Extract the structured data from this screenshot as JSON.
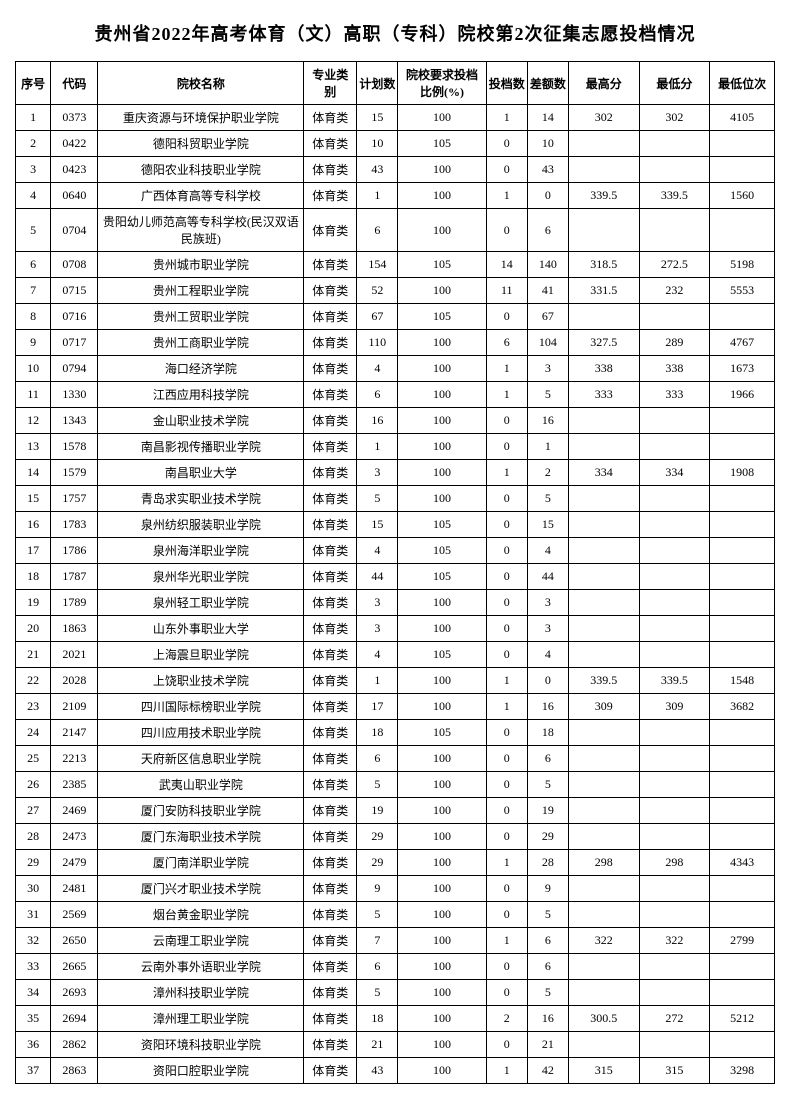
{
  "title": "贵州省2022年高考体育（文）高职（专科）院校第2次征集志愿投档情况",
  "columns": [
    "序号",
    "代码",
    "院校名称",
    "专业类别",
    "计划数",
    "院校要求投档比例(%)",
    "投档数",
    "差额数",
    "最高分",
    "最低分",
    "最低位次"
  ],
  "rows": [
    [
      "1",
      "0373",
      "重庆资源与环境保护职业学院",
      "体育类",
      "15",
      "100",
      "1",
      "14",
      "302",
      "302",
      "4105"
    ],
    [
      "2",
      "0422",
      "德阳科贸职业学院",
      "体育类",
      "10",
      "105",
      "0",
      "10",
      "",
      "",
      ""
    ],
    [
      "3",
      "0423",
      "德阳农业科技职业学院",
      "体育类",
      "43",
      "100",
      "0",
      "43",
      "",
      "",
      ""
    ],
    [
      "4",
      "0640",
      "广西体育高等专科学校",
      "体育类",
      "1",
      "100",
      "1",
      "0",
      "339.5",
      "339.5",
      "1560"
    ],
    [
      "5",
      "0704",
      "贵阳幼儿师范高等专科学校(民汉双语民族班)",
      "体育类",
      "6",
      "100",
      "0",
      "6",
      "",
      "",
      ""
    ],
    [
      "6",
      "0708",
      "贵州城市职业学院",
      "体育类",
      "154",
      "105",
      "14",
      "140",
      "318.5",
      "272.5",
      "5198"
    ],
    [
      "7",
      "0715",
      "贵州工程职业学院",
      "体育类",
      "52",
      "100",
      "11",
      "41",
      "331.5",
      "232",
      "5553"
    ],
    [
      "8",
      "0716",
      "贵州工贸职业学院",
      "体育类",
      "67",
      "105",
      "0",
      "67",
      "",
      "",
      ""
    ],
    [
      "9",
      "0717",
      "贵州工商职业学院",
      "体育类",
      "110",
      "100",
      "6",
      "104",
      "327.5",
      "289",
      "4767"
    ],
    [
      "10",
      "0794",
      "海口经济学院",
      "体育类",
      "4",
      "100",
      "1",
      "3",
      "338",
      "338",
      "1673"
    ],
    [
      "11",
      "1330",
      "江西应用科技学院",
      "体育类",
      "6",
      "100",
      "1",
      "5",
      "333",
      "333",
      "1966"
    ],
    [
      "12",
      "1343",
      "金山职业技术学院",
      "体育类",
      "16",
      "100",
      "0",
      "16",
      "",
      "",
      ""
    ],
    [
      "13",
      "1578",
      "南昌影视传播职业学院",
      "体育类",
      "1",
      "100",
      "0",
      "1",
      "",
      "",
      ""
    ],
    [
      "14",
      "1579",
      "南昌职业大学",
      "体育类",
      "3",
      "100",
      "1",
      "2",
      "334",
      "334",
      "1908"
    ],
    [
      "15",
      "1757",
      "青岛求实职业技术学院",
      "体育类",
      "5",
      "100",
      "0",
      "5",
      "",
      "",
      ""
    ],
    [
      "16",
      "1783",
      "泉州纺织服装职业学院",
      "体育类",
      "15",
      "105",
      "0",
      "15",
      "",
      "",
      ""
    ],
    [
      "17",
      "1786",
      "泉州海洋职业学院",
      "体育类",
      "4",
      "105",
      "0",
      "4",
      "",
      "",
      ""
    ],
    [
      "18",
      "1787",
      "泉州华光职业学院",
      "体育类",
      "44",
      "105",
      "0",
      "44",
      "",
      "",
      ""
    ],
    [
      "19",
      "1789",
      "泉州轻工职业学院",
      "体育类",
      "3",
      "100",
      "0",
      "3",
      "",
      "",
      ""
    ],
    [
      "20",
      "1863",
      "山东外事职业大学",
      "体育类",
      "3",
      "100",
      "0",
      "3",
      "",
      "",
      ""
    ],
    [
      "21",
      "2021",
      "上海震旦职业学院",
      "体育类",
      "4",
      "105",
      "0",
      "4",
      "",
      "",
      ""
    ],
    [
      "22",
      "2028",
      "上饶职业技术学院",
      "体育类",
      "1",
      "100",
      "1",
      "0",
      "339.5",
      "339.5",
      "1548"
    ],
    [
      "23",
      "2109",
      "四川国际标榜职业学院",
      "体育类",
      "17",
      "100",
      "1",
      "16",
      "309",
      "309",
      "3682"
    ],
    [
      "24",
      "2147",
      "四川应用技术职业学院",
      "体育类",
      "18",
      "105",
      "0",
      "18",
      "",
      "",
      ""
    ],
    [
      "25",
      "2213",
      "天府新区信息职业学院",
      "体育类",
      "6",
      "100",
      "0",
      "6",
      "",
      "",
      ""
    ],
    [
      "26",
      "2385",
      "武夷山职业学院",
      "体育类",
      "5",
      "100",
      "0",
      "5",
      "",
      "",
      ""
    ],
    [
      "27",
      "2469",
      "厦门安防科技职业学院",
      "体育类",
      "19",
      "100",
      "0",
      "19",
      "",
      "",
      ""
    ],
    [
      "28",
      "2473",
      "厦门东海职业技术学院",
      "体育类",
      "29",
      "100",
      "0",
      "29",
      "",
      "",
      ""
    ],
    [
      "29",
      "2479",
      "厦门南洋职业学院",
      "体育类",
      "29",
      "100",
      "1",
      "28",
      "298",
      "298",
      "4343"
    ],
    [
      "30",
      "2481",
      "厦门兴才职业技术学院",
      "体育类",
      "9",
      "100",
      "0",
      "9",
      "",
      "",
      ""
    ],
    [
      "31",
      "2569",
      "烟台黄金职业学院",
      "体育类",
      "5",
      "100",
      "0",
      "5",
      "",
      "",
      ""
    ],
    [
      "32",
      "2650",
      "云南理工职业学院",
      "体育类",
      "7",
      "100",
      "1",
      "6",
      "322",
      "322",
      "2799"
    ],
    [
      "33",
      "2665",
      "云南外事外语职业学院",
      "体育类",
      "6",
      "100",
      "0",
      "6",
      "",
      "",
      ""
    ],
    [
      "34",
      "2693",
      "漳州科技职业学院",
      "体育类",
      "5",
      "100",
      "0",
      "5",
      "",
      "",
      ""
    ],
    [
      "35",
      "2694",
      "漳州理工职业学院",
      "体育类",
      "18",
      "100",
      "2",
      "16",
      "300.5",
      "272",
      "5212"
    ],
    [
      "36",
      "2862",
      "资阳环境科技职业学院",
      "体育类",
      "21",
      "100",
      "0",
      "21",
      "",
      "",
      ""
    ],
    [
      "37",
      "2863",
      "资阳口腔职业学院",
      "体育类",
      "43",
      "100",
      "1",
      "42",
      "315",
      "315",
      "3298"
    ]
  ],
  "column_classes": [
    "col-seq",
    "col-code",
    "col-name",
    "col-type",
    "col-plan",
    "col-ratio",
    "col-filed",
    "col-diff",
    "col-max",
    "col-min",
    "col-rank"
  ]
}
